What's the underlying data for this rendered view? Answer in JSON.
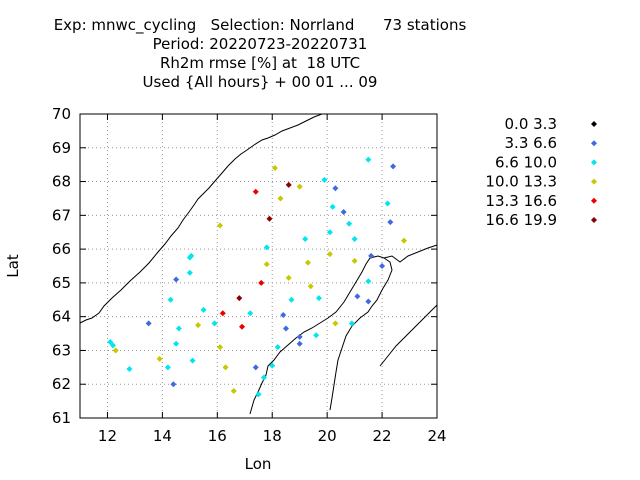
{
  "title": {
    "line1": "Exp: mnwc_cycling   Selection: Norrland      73 stations",
    "line2": "Period: 20220723-20220731",
    "line3": "Rh2m rmse [%] at  18 UTC",
    "line4": "Used {All hours} + 00 01 ... 09"
  },
  "chart_data": {
    "type": "scatter",
    "xlabel": "Lon",
    "ylabel": "Lat",
    "xlim": [
      11,
      24
    ],
    "ylim": [
      61,
      70
    ],
    "xticks": [
      "12",
      "14",
      "16",
      "18",
      "20",
      "22",
      "24"
    ],
    "yticks": [
      "61",
      "62",
      "63",
      "64",
      "65",
      "66",
      "67",
      "68",
      "69",
      "70"
    ],
    "grid": true,
    "legend_placement": "right",
    "classes": [
      {
        "label": "0.0 3.3",
        "color": "#000000"
      },
      {
        "label": "3.3 6.6",
        "color": "#4169e1"
      },
      {
        "label": "6.6 10.0",
        "color": "#00e5ee"
      },
      {
        "label": "10.0 13.3",
        "color": "#c8c800"
      },
      {
        "label": "13.3 16.6",
        "color": "#ee0000"
      },
      {
        "label": "16.6 19.9",
        "color": "#8b0000"
      }
    ],
    "points": [
      {
        "lon": 12.1,
        "lat": 63.25,
        "c": 2
      },
      {
        "lon": 12.2,
        "lat": 63.15,
        "c": 2
      },
      {
        "lon": 12.3,
        "lat": 63.0,
        "c": 3
      },
      {
        "lon": 12.8,
        "lat": 62.45,
        "c": 2
      },
      {
        "lon": 13.5,
        "lat": 63.8,
        "c": 1
      },
      {
        "lon": 13.9,
        "lat": 62.75,
        "c": 3
      },
      {
        "lon": 14.2,
        "lat": 62.5,
        "c": 2
      },
      {
        "lon": 14.3,
        "lat": 64.5,
        "c": 2
      },
      {
        "lon": 14.4,
        "lat": 62.0,
        "c": 1
      },
      {
        "lon": 14.5,
        "lat": 63.2,
        "c": 2
      },
      {
        "lon": 14.6,
        "lat": 63.65,
        "c": 2
      },
      {
        "lon": 14.5,
        "lat": 65.1,
        "c": 1
      },
      {
        "lon": 15.0,
        "lat": 65.75,
        "c": 2
      },
      {
        "lon": 15.05,
        "lat": 65.8,
        "c": 2
      },
      {
        "lon": 15.0,
        "lat": 65.3,
        "c": 2
      },
      {
        "lon": 15.1,
        "lat": 62.7,
        "c": 2
      },
      {
        "lon": 15.3,
        "lat": 63.75,
        "c": 3
      },
      {
        "lon": 15.5,
        "lat": 64.2,
        "c": 2
      },
      {
        "lon": 15.9,
        "lat": 63.8,
        "c": 2
      },
      {
        "lon": 16.1,
        "lat": 66.7,
        "c": 3
      },
      {
        "lon": 16.1,
        "lat": 63.1,
        "c": 3
      },
      {
        "lon": 16.2,
        "lat": 64.1,
        "c": 4
      },
      {
        "lon": 16.3,
        "lat": 62.5,
        "c": 3
      },
      {
        "lon": 16.6,
        "lat": 61.8,
        "c": 3
      },
      {
        "lon": 16.8,
        "lat": 64.55,
        "c": 5
      },
      {
        "lon": 16.9,
        "lat": 63.7,
        "c": 4
      },
      {
        "lon": 17.2,
        "lat": 64.1,
        "c": 2
      },
      {
        "lon": 17.4,
        "lat": 67.7,
        "c": 4
      },
      {
        "lon": 17.4,
        "lat": 62.5,
        "c": 1
      },
      {
        "lon": 17.5,
        "lat": 61.7,
        "c": 2
      },
      {
        "lon": 17.6,
        "lat": 65.0,
        "c": 4
      },
      {
        "lon": 17.7,
        "lat": 62.2,
        "c": 2
      },
      {
        "lon": 17.8,
        "lat": 66.05,
        "c": 2
      },
      {
        "lon": 17.8,
        "lat": 65.55,
        "c": 3
      },
      {
        "lon": 17.9,
        "lat": 66.9,
        "c": 5
      },
      {
        "lon": 18.0,
        "lat": 62.55,
        "c": 2
      },
      {
        "lon": 18.1,
        "lat": 68.4,
        "c": 3
      },
      {
        "lon": 18.2,
        "lat": 63.1,
        "c": 2
      },
      {
        "lon": 18.3,
        "lat": 67.5,
        "c": 3
      },
      {
        "lon": 18.4,
        "lat": 64.05,
        "c": 1
      },
      {
        "lon": 18.5,
        "lat": 63.65,
        "c": 1
      },
      {
        "lon": 18.6,
        "lat": 67.9,
        "c": 5
      },
      {
        "lon": 18.6,
        "lat": 65.15,
        "c": 3
      },
      {
        "lon": 18.7,
        "lat": 64.5,
        "c": 2
      },
      {
        "lon": 19.0,
        "lat": 63.4,
        "c": 1
      },
      {
        "lon": 19.0,
        "lat": 63.2,
        "c": 1
      },
      {
        "lon": 19.0,
        "lat": 67.85,
        "c": 3
      },
      {
        "lon": 19.2,
        "lat": 66.3,
        "c": 2
      },
      {
        "lon": 19.3,
        "lat": 65.6,
        "c": 3
      },
      {
        "lon": 19.4,
        "lat": 64.9,
        "c": 3
      },
      {
        "lon": 19.6,
        "lat": 63.45,
        "c": 2
      },
      {
        "lon": 19.7,
        "lat": 64.55,
        "c": 2
      },
      {
        "lon": 19.9,
        "lat": 68.05,
        "c": 2
      },
      {
        "lon": 20.1,
        "lat": 66.5,
        "c": 2
      },
      {
        "lon": 20.1,
        "lat": 65.85,
        "c": 3
      },
      {
        "lon": 20.2,
        "lat": 67.25,
        "c": 2
      },
      {
        "lon": 20.3,
        "lat": 63.8,
        "c": 3
      },
      {
        "lon": 20.3,
        "lat": 67.8,
        "c": 1
      },
      {
        "lon": 20.6,
        "lat": 67.1,
        "c": 1
      },
      {
        "lon": 20.8,
        "lat": 66.75,
        "c": 2
      },
      {
        "lon": 20.9,
        "lat": 63.8,
        "c": 2
      },
      {
        "lon": 21.0,
        "lat": 66.3,
        "c": 2
      },
      {
        "lon": 21.0,
        "lat": 65.65,
        "c": 3
      },
      {
        "lon": 21.1,
        "lat": 64.6,
        "c": 1
      },
      {
        "lon": 21.5,
        "lat": 68.65,
        "c": 2
      },
      {
        "lon": 21.5,
        "lat": 65.05,
        "c": 2
      },
      {
        "lon": 21.5,
        "lat": 64.45,
        "c": 1
      },
      {
        "lon": 21.6,
        "lat": 65.8,
        "c": 1
      },
      {
        "lon": 22.0,
        "lat": 65.5,
        "c": 1
      },
      {
        "lon": 22.2,
        "lat": 67.35,
        "c": 2
      },
      {
        "lon": 22.3,
        "lat": 66.8,
        "c": 1
      },
      {
        "lon": 22.4,
        "lat": 68.45,
        "c": 1
      },
      {
        "lon": 22.8,
        "lat": 66.25,
        "c": 3
      }
    ]
  }
}
